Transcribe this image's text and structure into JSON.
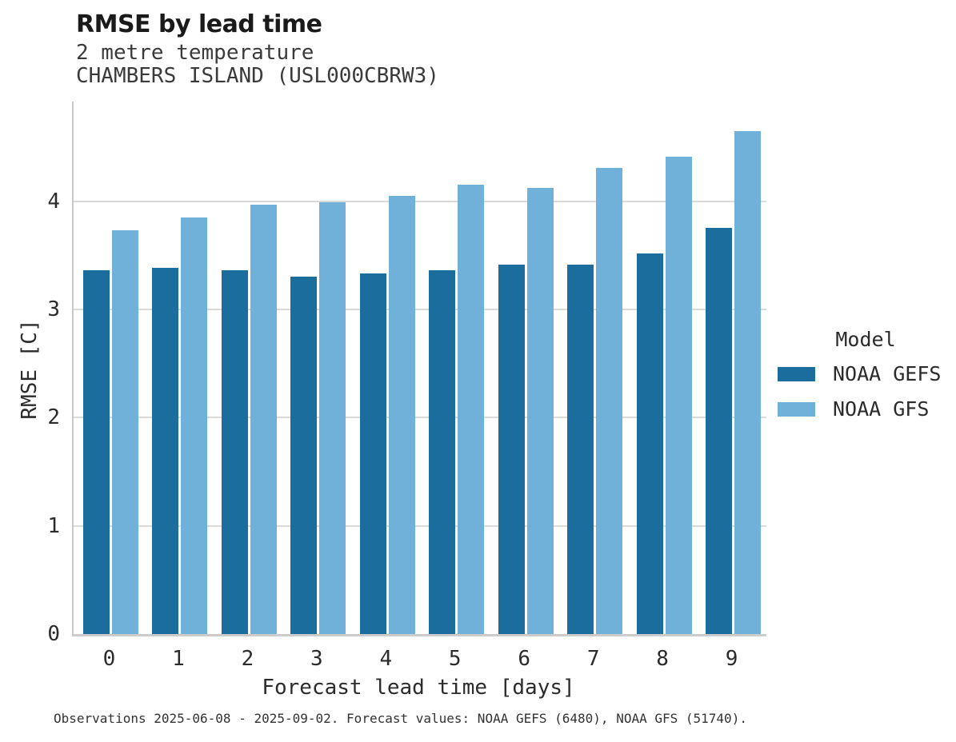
{
  "chart_data": {
    "type": "bar",
    "title": "RMSE by lead time",
    "subtitle": "2 metre temperature",
    "station": "CHAMBERS ISLAND (USL000CBRW3)",
    "xlabel": "Forecast lead time [days]",
    "ylabel": "RMSE [C]",
    "categories": [
      "0",
      "1",
      "2",
      "3",
      "4",
      "5",
      "6",
      "7",
      "8",
      "9"
    ],
    "series": [
      {
        "name": "NOAA GEFS",
        "color": "#1b6d9e",
        "values": [
          3.36,
          3.38,
          3.36,
          3.3,
          3.33,
          3.36,
          3.41,
          3.41,
          3.52,
          3.75
        ]
      },
      {
        "name": "NOAA GFS",
        "color": "#6fb1d8",
        "values": [
          3.73,
          3.85,
          3.97,
          3.99,
          4.05,
          4.15,
          4.12,
          4.31,
          4.41,
          4.65
        ]
      }
    ],
    "yticks": [
      0,
      1,
      2,
      3,
      4
    ],
    "ylim": [
      0,
      4.92
    ],
    "grid": "horizontal",
    "legend_title": "Model",
    "legend_position": "right",
    "caption": "Observations 2025-06-08 - 2025-09-02. Forecast values: NOAA GEFS (6480), NOAA GFS (51740)."
  }
}
